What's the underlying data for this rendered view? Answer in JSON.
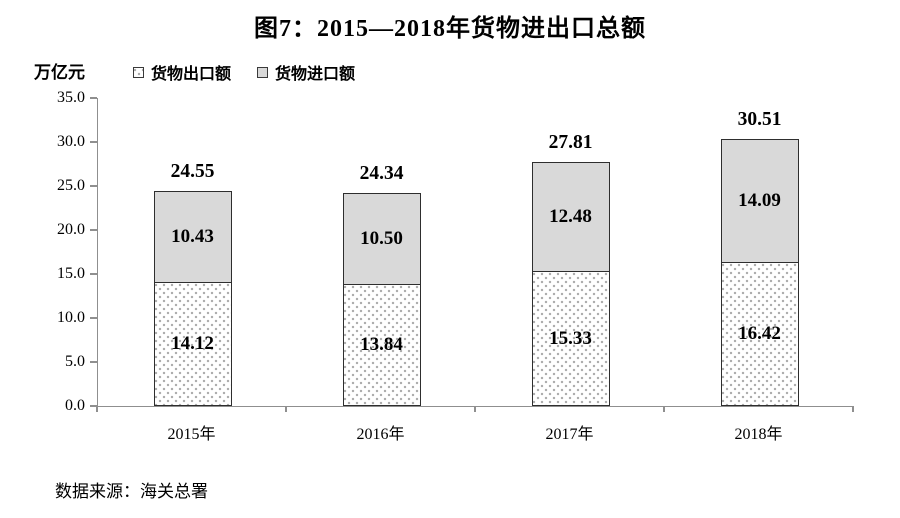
{
  "title": "图7：2015—2018年货物进出口总额",
  "y_axis_unit": "万亿元",
  "source": "数据来源：海关总署",
  "legend": [
    {
      "label": "货物出口额",
      "swatch": "dotted"
    },
    {
      "label": "货物进口额",
      "swatch": "gray"
    }
  ],
  "colors": {
    "import_fill": "#d9d9d9",
    "export_fill": "#ffffff",
    "export_dot": "#ababab",
    "bar_border": "#2e2e2e",
    "axis": "#8f8f8f",
    "text": "#000000"
  },
  "chart_data": {
    "type": "bar",
    "stacked": true,
    "title": "图7：2015—2018年货物进出口总额",
    "ylabel": "万亿元",
    "xlabel": "",
    "categories": [
      "2015年",
      "2016年",
      "2017年",
      "2018年"
    ],
    "series": [
      {
        "name": "货物出口额",
        "style": "dotted-white",
        "values": [
          14.12,
          13.84,
          15.33,
          16.42
        ]
      },
      {
        "name": "货物进口额",
        "style": "light-gray",
        "values": [
          10.43,
          10.5,
          12.48,
          14.09
        ]
      }
    ],
    "totals": [
      24.55,
      24.34,
      27.81,
      30.51
    ],
    "ylim": [
      0,
      35
    ],
    "ytick_step": 5,
    "ytick_labels": [
      "0.0",
      "5.0",
      "10.0",
      "15.0",
      "20.0",
      "25.0",
      "30.0",
      "35.0"
    ],
    "grid": false,
    "legend_position": "top-left",
    "value_labels": "inside-segments-and-total-above"
  }
}
